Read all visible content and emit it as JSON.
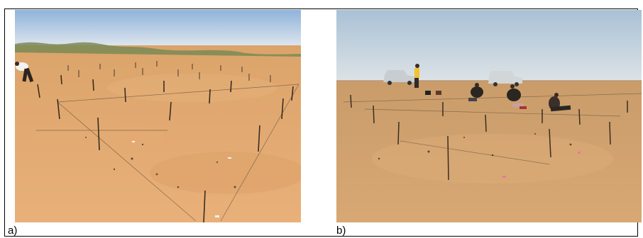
{
  "figure": {
    "panels": [
      {
        "label": "a)",
        "photo": "desert-sand-plot-grid-with-stakes"
      },
      {
        "label": "b)",
        "photo": "desert-field-team-with-vehicles"
      }
    ]
  }
}
